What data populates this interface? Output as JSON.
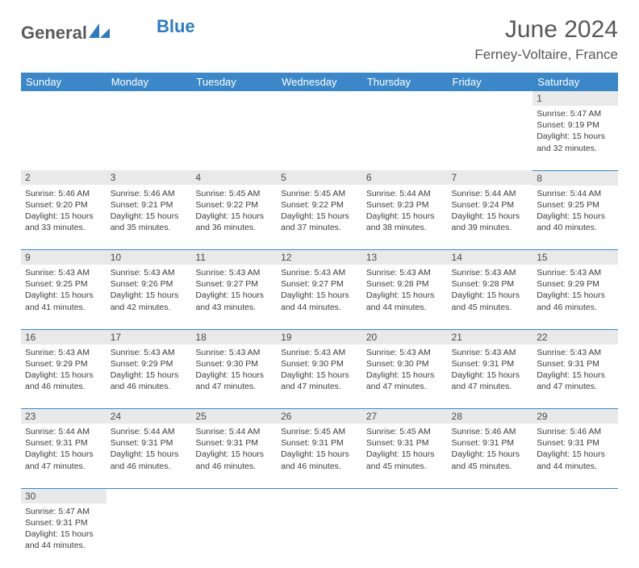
{
  "brand": {
    "part1": "General",
    "part2": "Blue"
  },
  "title": "June 2024",
  "location": "Ferney-Voltaire, France",
  "colors": {
    "header_bg": "#3b87c8",
    "header_text": "#ffffff",
    "daynum_bg": "#e9e9e9",
    "text": "#3d3d3d",
    "row_border": "#3b87c8",
    "brand_dark": "#5a5a5a",
    "brand_blue": "#2f7bbf"
  },
  "weekdays": [
    "Sunday",
    "Monday",
    "Tuesday",
    "Wednesday",
    "Thursday",
    "Friday",
    "Saturday"
  ],
  "weeks": [
    [
      null,
      null,
      null,
      null,
      null,
      null,
      {
        "n": "1",
        "sr": "Sunrise: 5:47 AM",
        "ss": "Sunset: 9:19 PM",
        "d1": "Daylight: 15 hours",
        "d2": "and 32 minutes."
      }
    ],
    [
      {
        "n": "2",
        "sr": "Sunrise: 5:46 AM",
        "ss": "Sunset: 9:20 PM",
        "d1": "Daylight: 15 hours",
        "d2": "and 33 minutes."
      },
      {
        "n": "3",
        "sr": "Sunrise: 5:46 AM",
        "ss": "Sunset: 9:21 PM",
        "d1": "Daylight: 15 hours",
        "d2": "and 35 minutes."
      },
      {
        "n": "4",
        "sr": "Sunrise: 5:45 AM",
        "ss": "Sunset: 9:22 PM",
        "d1": "Daylight: 15 hours",
        "d2": "and 36 minutes."
      },
      {
        "n": "5",
        "sr": "Sunrise: 5:45 AM",
        "ss": "Sunset: 9:22 PM",
        "d1": "Daylight: 15 hours",
        "d2": "and 37 minutes."
      },
      {
        "n": "6",
        "sr": "Sunrise: 5:44 AM",
        "ss": "Sunset: 9:23 PM",
        "d1": "Daylight: 15 hours",
        "d2": "and 38 minutes."
      },
      {
        "n": "7",
        "sr": "Sunrise: 5:44 AM",
        "ss": "Sunset: 9:24 PM",
        "d1": "Daylight: 15 hours",
        "d2": "and 39 minutes."
      },
      {
        "n": "8",
        "sr": "Sunrise: 5:44 AM",
        "ss": "Sunset: 9:25 PM",
        "d1": "Daylight: 15 hours",
        "d2": "and 40 minutes."
      }
    ],
    [
      {
        "n": "9",
        "sr": "Sunrise: 5:43 AM",
        "ss": "Sunset: 9:25 PM",
        "d1": "Daylight: 15 hours",
        "d2": "and 41 minutes."
      },
      {
        "n": "10",
        "sr": "Sunrise: 5:43 AM",
        "ss": "Sunset: 9:26 PM",
        "d1": "Daylight: 15 hours",
        "d2": "and 42 minutes."
      },
      {
        "n": "11",
        "sr": "Sunrise: 5:43 AM",
        "ss": "Sunset: 9:27 PM",
        "d1": "Daylight: 15 hours",
        "d2": "and 43 minutes."
      },
      {
        "n": "12",
        "sr": "Sunrise: 5:43 AM",
        "ss": "Sunset: 9:27 PM",
        "d1": "Daylight: 15 hours",
        "d2": "and 44 minutes."
      },
      {
        "n": "13",
        "sr": "Sunrise: 5:43 AM",
        "ss": "Sunset: 9:28 PM",
        "d1": "Daylight: 15 hours",
        "d2": "and 44 minutes."
      },
      {
        "n": "14",
        "sr": "Sunrise: 5:43 AM",
        "ss": "Sunset: 9:28 PM",
        "d1": "Daylight: 15 hours",
        "d2": "and 45 minutes."
      },
      {
        "n": "15",
        "sr": "Sunrise: 5:43 AM",
        "ss": "Sunset: 9:29 PM",
        "d1": "Daylight: 15 hours",
        "d2": "and 46 minutes."
      }
    ],
    [
      {
        "n": "16",
        "sr": "Sunrise: 5:43 AM",
        "ss": "Sunset: 9:29 PM",
        "d1": "Daylight: 15 hours",
        "d2": "and 46 minutes."
      },
      {
        "n": "17",
        "sr": "Sunrise: 5:43 AM",
        "ss": "Sunset: 9:29 PM",
        "d1": "Daylight: 15 hours",
        "d2": "and 46 minutes."
      },
      {
        "n": "18",
        "sr": "Sunrise: 5:43 AM",
        "ss": "Sunset: 9:30 PM",
        "d1": "Daylight: 15 hours",
        "d2": "and 47 minutes."
      },
      {
        "n": "19",
        "sr": "Sunrise: 5:43 AM",
        "ss": "Sunset: 9:30 PM",
        "d1": "Daylight: 15 hours",
        "d2": "and 47 minutes."
      },
      {
        "n": "20",
        "sr": "Sunrise: 5:43 AM",
        "ss": "Sunset: 9:30 PM",
        "d1": "Daylight: 15 hours",
        "d2": "and 47 minutes."
      },
      {
        "n": "21",
        "sr": "Sunrise: 5:43 AM",
        "ss": "Sunset: 9:31 PM",
        "d1": "Daylight: 15 hours",
        "d2": "and 47 minutes."
      },
      {
        "n": "22",
        "sr": "Sunrise: 5:43 AM",
        "ss": "Sunset: 9:31 PM",
        "d1": "Daylight: 15 hours",
        "d2": "and 47 minutes."
      }
    ],
    [
      {
        "n": "23",
        "sr": "Sunrise: 5:44 AM",
        "ss": "Sunset: 9:31 PM",
        "d1": "Daylight: 15 hours",
        "d2": "and 47 minutes."
      },
      {
        "n": "24",
        "sr": "Sunrise: 5:44 AM",
        "ss": "Sunset: 9:31 PM",
        "d1": "Daylight: 15 hours",
        "d2": "and 46 minutes."
      },
      {
        "n": "25",
        "sr": "Sunrise: 5:44 AM",
        "ss": "Sunset: 9:31 PM",
        "d1": "Daylight: 15 hours",
        "d2": "and 46 minutes."
      },
      {
        "n": "26",
        "sr": "Sunrise: 5:45 AM",
        "ss": "Sunset: 9:31 PM",
        "d1": "Daylight: 15 hours",
        "d2": "and 46 minutes."
      },
      {
        "n": "27",
        "sr": "Sunrise: 5:45 AM",
        "ss": "Sunset: 9:31 PM",
        "d1": "Daylight: 15 hours",
        "d2": "and 45 minutes."
      },
      {
        "n": "28",
        "sr": "Sunrise: 5:46 AM",
        "ss": "Sunset: 9:31 PM",
        "d1": "Daylight: 15 hours",
        "d2": "and 45 minutes."
      },
      {
        "n": "29",
        "sr": "Sunrise: 5:46 AM",
        "ss": "Sunset: 9:31 PM",
        "d1": "Daylight: 15 hours",
        "d2": "and 44 minutes."
      }
    ],
    [
      {
        "n": "30",
        "sr": "Sunrise: 5:47 AM",
        "ss": "Sunset: 9:31 PM",
        "d1": "Daylight: 15 hours",
        "d2": "and 44 minutes."
      },
      null,
      null,
      null,
      null,
      null,
      null
    ]
  ]
}
